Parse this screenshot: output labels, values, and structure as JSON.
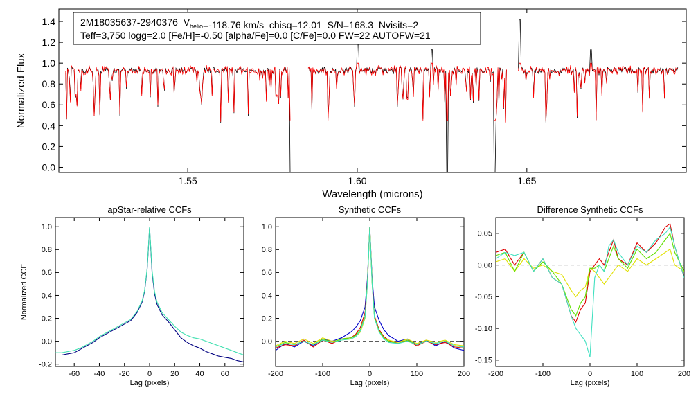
{
  "chart_data": [
    {
      "id": "spectrum",
      "type": "line",
      "xlabel": "Wavelength (microns)",
      "ylabel": "Normalized Flux",
      "xlim": [
        1.512,
        1.697
      ],
      "ylim": [
        -0.05,
        1.52
      ],
      "xticks": [
        1.55,
        1.6,
        1.65
      ],
      "xtick_labels": [
        "1.55",
        "1.60",
        "1.65"
      ],
      "yticks": [
        0.0,
        0.2,
        0.4,
        0.6,
        0.8,
        1.0,
        1.2,
        1.4
      ],
      "ytick_labels": [
        "0.0",
        "0.2",
        "0.4",
        "0.6",
        "0.8",
        "1.0",
        "1.2",
        "1.4"
      ],
      "chip_ranges": [
        [
          1.514,
          1.5802
        ],
        [
          1.5855,
          1.644
        ],
        [
          1.6475,
          1.6945
        ]
      ],
      "continuum": 0.93,
      "deep_lines": [
        {
          "x": 1.5805,
          "min": -0.05
        },
        {
          "x": 1.6265,
          "min": -0.05
        },
        {
          "x": 1.6405,
          "min": -0.05
        }
      ],
      "spikes": [
        {
          "x": 1.6002,
          "max": 1.22
        },
        {
          "x": 1.648,
          "max": 1.42
        },
        {
          "x": 1.622,
          "max": 1.13
        },
        {
          "x": 1.669,
          "max": 1.13
        }
      ],
      "series": [
        {
          "name": "observed",
          "color": "#000000"
        },
        {
          "name": "model",
          "color": "#ff0000"
        }
      ],
      "annotation": {
        "object_id": "2M18035637-2940376",
        "vhelio_label": "V",
        "vhelio_subscript": "helio",
        "vhelio_value": "=-118.76 km/s",
        "chisq": "chisq=12.01",
        "snr": "S/N=168.3",
        "nvisits": "Nvisits=2",
        "line2": "Teff=3,750 logg=2.0 [Fe/H]=-0.50 [alpha/Fe]=0.0 [C/Fe]=0.0 FW=22 AUTOFW=21"
      }
    },
    {
      "id": "apstar-ccf",
      "type": "line",
      "title": "apStar-relative CCFs",
      "xlabel": "Lag (pixels)",
      "ylabel": "Normalized CCF",
      "xlim": [
        -75,
        75
      ],
      "ylim": [
        -0.22,
        1.08
      ],
      "xticks": [
        -60,
        -40,
        -20,
        0,
        20,
        40,
        60
      ],
      "xtick_labels": [
        "-60",
        "-40",
        "-20",
        "0",
        "20",
        "40",
        "60"
      ],
      "yticks": [
        -0.2,
        0.0,
        0.2,
        0.4,
        0.6,
        0.8,
        1.0
      ],
      "ytick_labels": [
        "-0.2",
        "0.0",
        "0.2",
        "0.4",
        "0.6",
        "0.8",
        "1.0"
      ],
      "series": [
        {
          "name": "ccf-1",
          "color": "#000080",
          "x": [
            -75,
            -70,
            -65,
            -60,
            -55,
            -50,
            -45,
            -40,
            -35,
            -30,
            -25,
            -20,
            -15,
            -10,
            -6,
            -4,
            -2,
            -1,
            0,
            1,
            2,
            4,
            6,
            10,
            15,
            20,
            25,
            30,
            35,
            40,
            45,
            50,
            55,
            60,
            65,
            70,
            75
          ],
          "y": [
            -0.12,
            -0.12,
            -0.11,
            -0.1,
            -0.07,
            -0.04,
            -0.01,
            0.03,
            0.06,
            0.09,
            0.12,
            0.15,
            0.18,
            0.25,
            0.34,
            0.43,
            0.62,
            0.8,
            0.99,
            0.8,
            0.6,
            0.41,
            0.32,
            0.23,
            0.17,
            0.1,
            0.03,
            -0.01,
            -0.04,
            -0.06,
            -0.09,
            -0.11,
            -0.13,
            -0.14,
            -0.15,
            -0.17,
            -0.18
          ]
        },
        {
          "name": "ccf-2",
          "color": "#40e0b0",
          "x": [
            -75,
            -70,
            -65,
            -60,
            -55,
            -50,
            -45,
            -40,
            -35,
            -30,
            -25,
            -20,
            -15,
            -10,
            -6,
            -4,
            -2,
            -1,
            0,
            1,
            2,
            4,
            6,
            10,
            15,
            20,
            25,
            30,
            35,
            40,
            45,
            50,
            55,
            60,
            65,
            70,
            75
          ],
          "y": [
            -0.1,
            -0.1,
            -0.09,
            -0.08,
            -0.06,
            -0.03,
            0.0,
            0.04,
            0.07,
            0.1,
            0.13,
            0.16,
            0.19,
            0.26,
            0.35,
            0.44,
            0.63,
            0.81,
            1.0,
            0.81,
            0.62,
            0.43,
            0.34,
            0.25,
            0.19,
            0.13,
            0.08,
            0.05,
            0.03,
            0.02,
            0.0,
            -0.02,
            -0.04,
            -0.06,
            -0.08,
            -0.1,
            -0.12
          ]
        }
      ]
    },
    {
      "id": "synthetic-ccf",
      "type": "line",
      "title": "Synthetic CCFs",
      "xlabel": "Lag (pixels)",
      "ylabel": "",
      "xlim": [
        -200,
        200
      ],
      "ylim": [
        -0.22,
        1.08
      ],
      "xticks": [
        -200,
        -100,
        0,
        100,
        200
      ],
      "xtick_labels": [
        "-200",
        "-100",
        "0",
        "100",
        "200"
      ],
      "yticks": [
        0.0,
        0.2,
        0.4,
        0.6,
        0.8,
        1.0
      ],
      "ytick_labels": [
        "0.0",
        "0.2",
        "0.4",
        "0.6",
        "0.8",
        "1.0"
      ],
      "series": [
        {
          "name": "ccf-blue",
          "color": "#0000cc",
          "x": [
            -200,
            -180,
            -160,
            -140,
            -120,
            -100,
            -80,
            -60,
            -40,
            -30,
            -20,
            -10,
            -5,
            0,
            5,
            10,
            20,
            30,
            40,
            60,
            80,
            100,
            120,
            140,
            160,
            180,
            200
          ],
          "y": [
            -0.08,
            -0.02,
            -0.05,
            0.0,
            -0.04,
            0.02,
            0.0,
            0.03,
            0.08,
            0.12,
            0.18,
            0.3,
            0.55,
            1.0,
            0.55,
            0.3,
            0.18,
            0.1,
            0.05,
            0.0,
            0.02,
            -0.03,
            0.01,
            -0.04,
            0.0,
            -0.06,
            -0.08
          ]
        },
        {
          "name": "ccf-red",
          "color": "#dd0000",
          "x": [
            -200,
            -180,
            -160,
            -140,
            -120,
            -100,
            -80,
            -60,
            -40,
            -30,
            -20,
            -10,
            -5,
            0,
            5,
            10,
            20,
            30,
            40,
            60,
            80,
            100,
            120,
            140,
            160,
            180,
            200
          ],
          "y": [
            -0.06,
            -0.03,
            -0.04,
            0.01,
            -0.05,
            0.01,
            -0.02,
            0.02,
            0.03,
            0.06,
            0.12,
            0.25,
            0.52,
            1.0,
            0.52,
            0.22,
            0.1,
            0.04,
            0.01,
            -0.02,
            0.01,
            -0.04,
            0.0,
            -0.03,
            -0.01,
            -0.05,
            -0.06
          ]
        },
        {
          "name": "ccf-yellow",
          "color": "#e0e000",
          "x": [
            -200,
            -180,
            -160,
            -140,
            -120,
            -100,
            -80,
            -60,
            -40,
            -30,
            -20,
            -10,
            -5,
            0,
            5,
            10,
            20,
            30,
            40,
            60,
            80,
            100,
            120,
            140,
            160,
            180,
            200
          ],
          "y": [
            -0.04,
            0.0,
            -0.02,
            0.02,
            -0.02,
            0.03,
            0.0,
            0.01,
            0.02,
            0.04,
            0.08,
            0.2,
            0.5,
            1.0,
            0.5,
            0.2,
            0.08,
            0.03,
            0.01,
            -0.01,
            0.02,
            -0.02,
            0.01,
            -0.01,
            0.01,
            -0.03,
            -0.04
          ]
        },
        {
          "name": "ccf-green",
          "color": "#60e000",
          "x": [
            -200,
            -180,
            -160,
            -140,
            -120,
            -100,
            -80,
            -60,
            -40,
            -30,
            -20,
            -10,
            -5,
            0,
            5,
            10,
            20,
            30,
            40,
            60,
            80,
            100,
            120,
            140,
            160,
            180,
            200
          ],
          "y": [
            -0.05,
            -0.01,
            -0.03,
            0.0,
            -0.03,
            0.02,
            -0.01,
            0.02,
            0.03,
            0.05,
            0.1,
            0.22,
            0.51,
            1.0,
            0.51,
            0.21,
            0.09,
            0.03,
            0.0,
            -0.02,
            0.01,
            -0.03,
            0.0,
            -0.02,
            0.0,
            -0.04,
            -0.05
          ]
        },
        {
          "name": "ccf-cyan",
          "color": "#40e0c0",
          "x": [
            -200,
            -180,
            -160,
            -140,
            -120,
            -100,
            -80,
            -60,
            -40,
            -30,
            -20,
            -10,
            -5,
            0,
            5,
            10,
            20,
            30,
            40,
            60,
            80,
            100,
            120,
            140,
            160,
            180,
            200
          ],
          "y": [
            -0.05,
            -0.02,
            -0.03,
            0.0,
            -0.03,
            0.01,
            -0.01,
            0.01,
            0.02,
            0.04,
            0.09,
            0.21,
            0.5,
            1.0,
            0.5,
            0.2,
            0.08,
            0.02,
            -0.01,
            -0.02,
            0.0,
            -0.03,
            0.0,
            -0.02,
            0.0,
            -0.04,
            -0.05
          ]
        }
      ],
      "reference_line": {
        "y": 0.0,
        "style": "dashed"
      }
    },
    {
      "id": "difference-ccf",
      "type": "line",
      "title": "Difference Synthetic CCFs",
      "xlabel": "Lag (pixels)",
      "ylabel": "",
      "xlim": [
        -200,
        200
      ],
      "ylim": [
        -0.16,
        0.075
      ],
      "xticks": [
        -200,
        -100,
        0,
        100,
        200
      ],
      "xtick_labels": [
        "-200",
        "-100",
        "0",
        "100",
        "200"
      ],
      "yticks": [
        -0.15,
        -0.1,
        -0.05,
        0.0,
        0.05
      ],
      "ytick_labels": [
        "-0.15",
        "-0.10",
        "-0.05",
        "0.00",
        "0.05"
      ],
      "series": [
        {
          "name": "diff-red",
          "color": "#dd0000",
          "x": [
            -200,
            -180,
            -160,
            -140,
            -120,
            -100,
            -80,
            -60,
            -40,
            -30,
            -20,
            -10,
            0,
            10,
            20,
            30,
            40,
            50,
            60,
            80,
            100,
            120,
            140,
            160,
            170,
            180,
            200
          ],
          "y": [
            0.02,
            0.025,
            0.0,
            0.02,
            -0.01,
            0.01,
            -0.02,
            -0.03,
            -0.08,
            -0.09,
            -0.07,
            -0.06,
            -0.01,
            0.0,
            0.01,
            0.0,
            0.02,
            0.04,
            0.01,
            0.0,
            0.035,
            0.02,
            0.035,
            0.06,
            0.065,
            0.03,
            -0.02
          ]
        },
        {
          "name": "diff-yellow",
          "color": "#e0e000",
          "x": [
            -200,
            -180,
            -160,
            -140,
            -120,
            -100,
            -80,
            -60,
            -40,
            -30,
            -20,
            -10,
            0,
            10,
            20,
            30,
            40,
            50,
            60,
            80,
            100,
            120,
            140,
            160,
            170,
            180,
            200
          ],
          "y": [
            0.005,
            0.01,
            -0.01,
            0.01,
            -0.005,
            0.0,
            -0.01,
            -0.015,
            -0.04,
            -0.05,
            -0.04,
            -0.035,
            -0.005,
            -0.01,
            -0.02,
            -0.03,
            -0.02,
            -0.01,
            0.0,
            -0.01,
            0.01,
            0.0,
            0.01,
            0.02,
            0.025,
            0.0,
            -0.01
          ]
        },
        {
          "name": "diff-green",
          "color": "#60e000",
          "x": [
            -200,
            -180,
            -160,
            -140,
            -120,
            -100,
            -80,
            -60,
            -40,
            -30,
            -20,
            -10,
            0,
            10,
            20,
            30,
            40,
            50,
            60,
            80,
            100,
            120,
            140,
            160,
            170,
            180,
            200
          ],
          "y": [
            0.015,
            0.02,
            -0.01,
            0.02,
            -0.01,
            0.005,
            -0.01,
            -0.03,
            -0.07,
            -0.08,
            -0.06,
            -0.05,
            -0.005,
            -0.005,
            0.0,
            -0.01,
            0.01,
            0.03,
            0.01,
            -0.005,
            0.025,
            0.01,
            0.02,
            0.04,
            0.05,
            0.02,
            -0.01
          ]
        },
        {
          "name": "diff-cyan",
          "color": "#40e0c0",
          "x": [
            -200,
            -180,
            -160,
            -140,
            -120,
            -100,
            -80,
            -60,
            -40,
            -30,
            -20,
            -10,
            0,
            10,
            20,
            30,
            40,
            50,
            60,
            80,
            100,
            120,
            140,
            160,
            170,
            180,
            200
          ],
          "y": [
            0.01,
            0.02,
            0.015,
            0.02,
            -0.01,
            0.01,
            -0.02,
            -0.03,
            -0.08,
            -0.1,
            -0.11,
            -0.12,
            -0.145,
            -0.02,
            0.0,
            -0.01,
            0.03,
            0.04,
            0.02,
            0.0,
            0.03,
            0.02,
            0.04,
            0.05,
            0.06,
            0.03,
            -0.02
          ]
        }
      ],
      "reference_line": {
        "y": 0.0,
        "style": "dashed"
      }
    }
  ]
}
